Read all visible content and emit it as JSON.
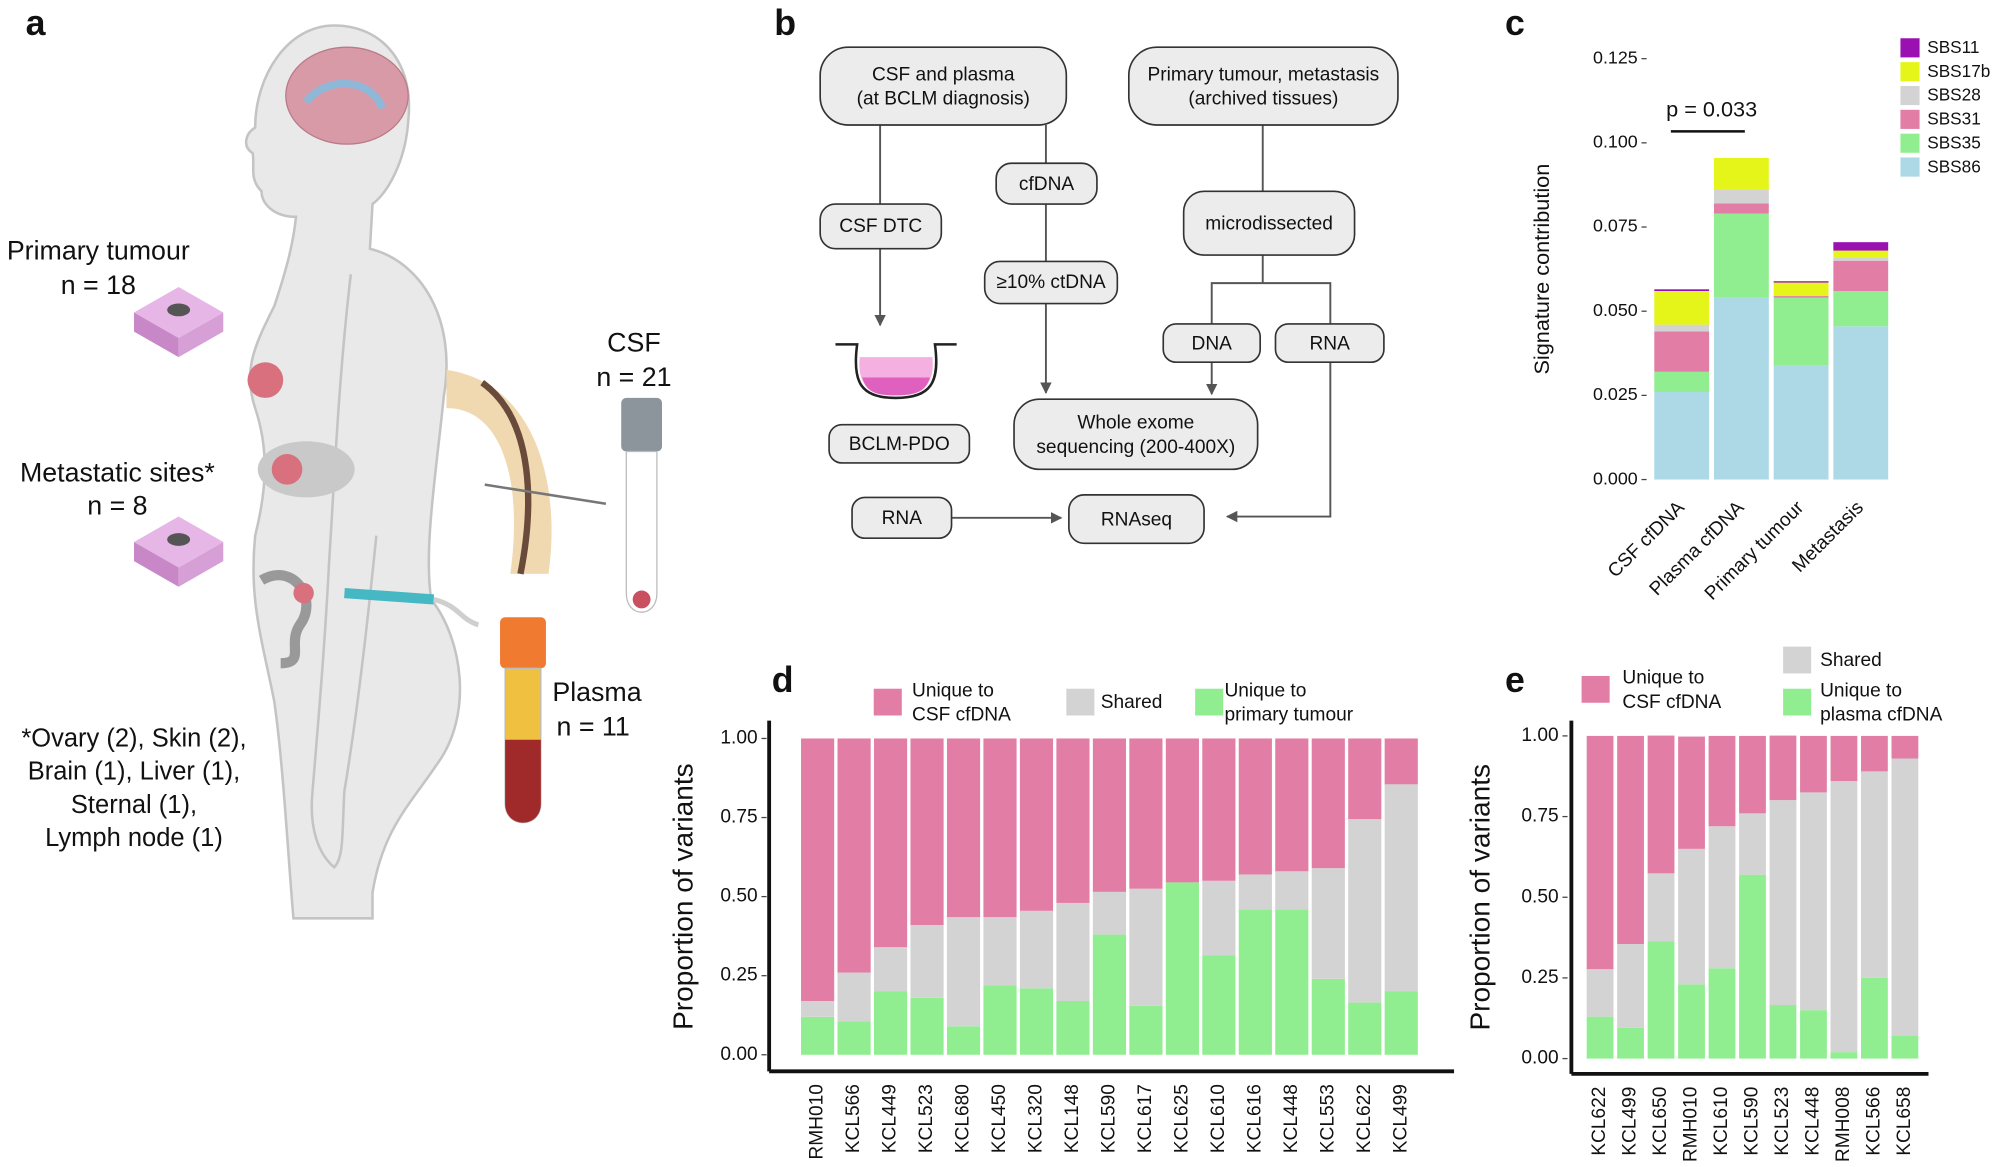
{
  "panel_labels": [
    "a",
    "b",
    "c",
    "d",
    "e"
  ],
  "panel_a": {
    "labels": [
      "Primary tumour",
      "n = 18",
      "Metastatic sites*",
      "n = 8",
      "CSF",
      "n = 21",
      "Plasma",
      "n = 11"
    ],
    "footnote": [
      "*Ovary (2), Skin (2),",
      "Brain (1), Liver (1),",
      "Sternal (1),",
      "Lymph node (1)"
    ]
  },
  "panel_b": {
    "nodes": [
      "CSF and plasma\n(at BCLM diagnosis)",
      "Primary tumour, metastasis\n(archived tissues)",
      "CSF DTC",
      "cfDNA",
      "microdissected",
      "≥10% ctDNA",
      "DNA",
      "RNA",
      "BCLM-PDO",
      "Whole exome\nsequencing (200-400X)",
      "RNA",
      "RNAseq"
    ]
  },
  "chart_data": [
    {
      "type": "bar",
      "stacked": true,
      "y_label": "Signature contribution",
      "annotation": "p = 0.033",
      "categories": [
        "CSF cfDNA",
        "Plasma cfDNA",
        "Primary tumour",
        "Metastasis"
      ],
      "series": [
        {
          "name": "SBS86",
          "color": "#add8e6",
          "values": [
            0.026,
            0.054,
            0.034,
            0.0455
          ]
        },
        {
          "name": "SBS35",
          "color": "#90ee90",
          "values": [
            0.006,
            0.025,
            0.02,
            0.0105
          ]
        },
        {
          "name": "SBS31",
          "color": "#e27ea6",
          "values": [
            0.012,
            0.003,
            0.0005,
            0.009
          ]
        },
        {
          "name": "SBS28",
          "color": "#d3d3d3",
          "values": [
            0.002,
            0.004,
            0,
            0.001
          ]
        },
        {
          "name": "SBS17b",
          "color": "#e5f51a",
          "values": [
            0.01,
            0.0095,
            0.004,
            0.002
          ]
        },
        {
          "name": "SBS11",
          "color": "#9b10b0",
          "values": [
            0.0005,
            0,
            0.0004,
            0.0025
          ]
        }
      ],
      "ylim": [
        0,
        0.125
      ],
      "yticks": [
        {
          "value": 0,
          "label": "0.000"
        },
        {
          "value": 0.025,
          "label": "0.025"
        },
        {
          "value": 0.05,
          "label": "0.050"
        },
        {
          "value": 0.075,
          "label": "0.075"
        },
        {
          "value": 0.1,
          "label": "0.100"
        },
        {
          "value": 0.125,
          "label": "0.125"
        }
      ]
    },
    {
      "type": "bar",
      "stacked": true,
      "y_label": "Proportion of variants",
      "categories": [
        "RMH010",
        "KCL566",
        "KCL449",
        "KCL523",
        "KCL680",
        "KCL450",
        "KCL320",
        "KCL148",
        "KCL590",
        "KCL617",
        "KCL625",
        "KCL610",
        "KCL616",
        "KCL448",
        "KCL553",
        "KCL622",
        "KCL499"
      ],
      "series": [
        {
          "name": "Unique to\nprimary tumour",
          "color": "#90ee90",
          "values": [
            0.12,
            0.105,
            0.2,
            0.18,
            0.09,
            0.22,
            0.21,
            0.17,
            0.38,
            0.155,
            0.545,
            0.315,
            0.46,
            0.46,
            0.24,
            0.165,
            0.2
          ]
        },
        {
          "name": "Shared",
          "color": "#d3d3d3",
          "values": [
            0.05,
            0.155,
            0.14,
            0.23,
            0.345,
            0.215,
            0.245,
            0.31,
            0.135,
            0.37,
            0,
            0.235,
            0.11,
            0.12,
            0.35,
            0.58,
            0.655
          ]
        },
        {
          "name": "Unique to\nCSF cfDNA",
          "color": "#e27ea6",
          "values": [
            0.83,
            0.74,
            0.66,
            0.59,
            0.565,
            0.565,
            0.545,
            0.52,
            0.485,
            0.475,
            0.455,
            0.45,
            0.43,
            0.42,
            0.41,
            0.255,
            0.145
          ]
        }
      ],
      "ylim": [
        0,
        1
      ],
      "yticks": [
        {
          "value": 0,
          "label": "0.00"
        },
        {
          "value": 0.25,
          "label": "0.25"
        },
        {
          "value": 0.5,
          "label": "0.50"
        },
        {
          "value": 0.75,
          "label": "0.75"
        },
        {
          "value": 1,
          "label": "1.00"
        }
      ]
    },
    {
      "type": "bar",
      "stacked": true,
      "y_label": "Proportion of variants",
      "categories": [
        "KCL622",
        "KCL499",
        "KCL650",
        "RMH010",
        "KCL610",
        "KCL590",
        "KCL523",
        "KCL448",
        "RMH008",
        "KCL566",
        "KCL658"
      ],
      "series": [
        {
          "name": "Unique to\nplasma cfDNA",
          "color": "#90ee90",
          "values": [
            0.13,
            0.095,
            0.364,
            0.23,
            0.28,
            0.57,
            0.166,
            0.15,
            0.02,
            0.25,
            0.07
          ]
        },
        {
          "name": "Shared",
          "color": "#d3d3d3",
          "values": [
            0.147,
            0.26,
            0.21,
            0.42,
            0.44,
            0.19,
            0.635,
            0.675,
            0.84,
            0.64,
            0.86
          ]
        },
        {
          "name": "Unique to\nCSF cfDNA",
          "color": "#e27ea6",
          "values": [
            0.723,
            0.645,
            0.427,
            0.348,
            0.28,
            0.24,
            0.2,
            0.175,
            0.14,
            0.11,
            0.07
          ]
        }
      ],
      "ylim": [
        0,
        1
      ],
      "yticks": [
        {
          "value": 0,
          "label": "0.00"
        },
        {
          "value": 0.25,
          "label": "0.25"
        },
        {
          "value": 0.5,
          "label": "0.50"
        },
        {
          "value": 0.75,
          "label": "0.75"
        },
        {
          "value": 1,
          "label": "1.00"
        }
      ]
    }
  ]
}
